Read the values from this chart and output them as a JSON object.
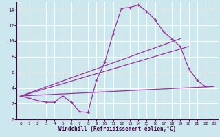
{
  "xlabel": "Windchill (Refroidissement éolien,°C)",
  "bg_color": "#cce8ee",
  "grid_color": "#ffffff",
  "line_color": "#993399",
  "xlim": [
    -0.5,
    23.5
  ],
  "ylim": [
    0,
    15
  ],
  "xticks": [
    0,
    1,
    2,
    3,
    4,
    5,
    6,
    7,
    8,
    9,
    10,
    11,
    12,
    13,
    14,
    15,
    16,
    17,
    18,
    19,
    20,
    21,
    22,
    23
  ],
  "yticks": [
    0,
    2,
    4,
    6,
    8,
    10,
    12,
    14
  ],
  "line1_x": [
    0,
    1,
    2,
    3,
    4,
    5,
    6,
    7,
    8,
    9,
    10,
    11,
    12,
    13,
    14,
    15,
    16,
    17,
    18,
    19,
    20,
    21,
    22
  ],
  "line1_y": [
    3.0,
    2.7,
    2.4,
    2.2,
    2.2,
    3.0,
    2.2,
    1.0,
    0.9,
    5.0,
    7.3,
    11.0,
    14.2,
    14.3,
    14.6,
    13.8,
    12.7,
    11.2,
    10.3,
    9.3,
    6.5,
    5.0,
    4.2
  ],
  "line2_x": [
    0,
    23
  ],
  "line2_y": [
    3.0,
    4.2
  ],
  "line3_x": [
    0,
    20
  ],
  "line3_y": [
    3.0,
    9.3
  ],
  "line4_x": [
    0,
    19
  ],
  "line4_y": [
    3.0,
    10.3
  ]
}
